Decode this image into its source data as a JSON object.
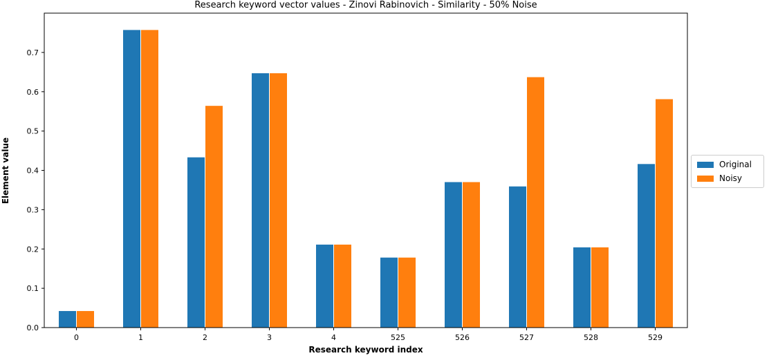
{
  "chart_data": {
    "type": "bar",
    "title": "Research keyword vector values - Zinovi Rabinovich - Similarity - 50% Noise",
    "xlabel": "Research keyword index",
    "ylabel": "Element value",
    "categories": [
      "0",
      "1",
      "2",
      "3",
      "4",
      "525",
      "526",
      "527",
      "528",
      "529"
    ],
    "ylim": [
      0,
      0.8
    ],
    "yticks": [
      "0.0",
      "0.1",
      "0.2",
      "0.3",
      "0.4",
      "0.5",
      "0.6",
      "0.7"
    ],
    "legend_position": "center-right-outside",
    "grid": false,
    "series": [
      {
        "name": "Original",
        "color": "#1f77b4",
        "values": [
          0.043,
          0.758,
          0.434,
          0.648,
          0.212,
          0.179,
          0.371,
          0.36,
          0.205,
          0.417
        ]
      },
      {
        "name": "Noisy",
        "color": "#ff7f0e",
        "values": [
          0.043,
          0.758,
          0.565,
          0.648,
          0.212,
          0.179,
          0.371,
          0.638,
          0.205,
          0.582
        ]
      }
    ]
  }
}
